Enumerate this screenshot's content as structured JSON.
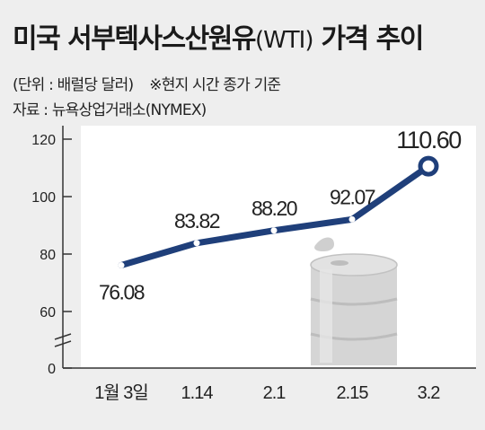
{
  "header": {
    "title_main": "미국 서부텍사스산원유",
    "title_paren": "(WTI)",
    "title_tail": " 가격 추이",
    "unit": "(단위 : 배럴당 달러)",
    "note": "※현지 시간 종가 기준",
    "source": "자료 : 뉴욕상업거래소(NYMEX)"
  },
  "chart_data": {
    "type": "line",
    "title": "미국 서부텍사스산원유(WTI) 가격 추이",
    "categories": [
      "1월 3일",
      "1.14",
      "2.1",
      "2.15",
      "3.2"
    ],
    "values": [
      76.08,
      83.82,
      88.2,
      92.07,
      110.6
    ],
    "labels": [
      "76.08",
      "83.82",
      "88.20",
      "92.07",
      "110.60"
    ],
    "yticks": [
      "0",
      "60",
      "80",
      "100",
      "120"
    ],
    "ylim": [
      60,
      120
    ],
    "y_axis_break": true,
    "line_color": "#1f3f7a",
    "marker_fill": "#ffffff",
    "grid": false,
    "legend": "none"
  }
}
